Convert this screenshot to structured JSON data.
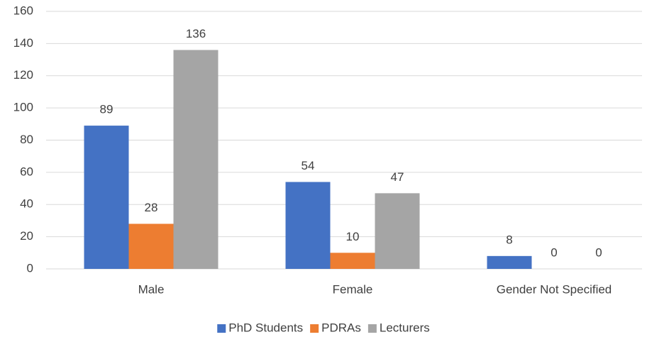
{
  "chart_data": {
    "type": "bar",
    "categories": [
      "Male",
      "Female",
      "Gender Not Specified"
    ],
    "series": [
      {
        "name": "PhD Students",
        "color": "#4472c4",
        "values": [
          89,
          54,
          8
        ]
      },
      {
        "name": "PDRAs",
        "color": "#ed7d31",
        "values": [
          28,
          10,
          0
        ]
      },
      {
        "name": "Lecturers",
        "color": "#a5a5a5",
        "values": [
          136,
          47,
          0
        ]
      }
    ],
    "ylim": [
      0,
      160
    ],
    "yticks": [
      0,
      20,
      40,
      60,
      80,
      100,
      120,
      140,
      160
    ],
    "grid": true,
    "legend": "bottom"
  }
}
